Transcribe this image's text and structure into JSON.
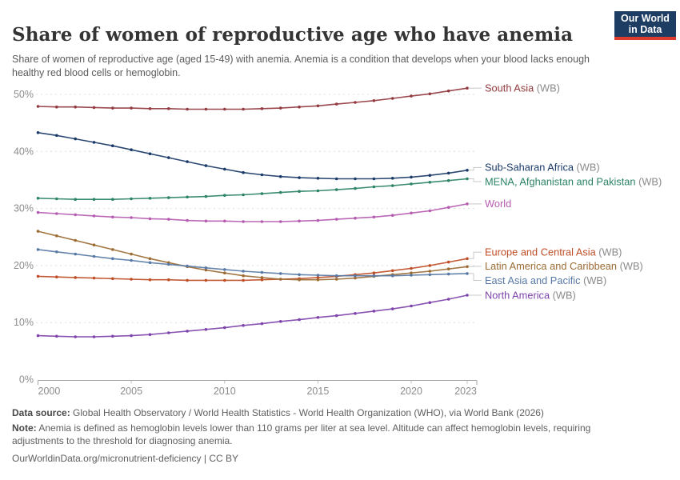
{
  "header": {
    "title": "Share of women of reproductive age who have anemia",
    "subtitle": "Share of women of reproductive age (aged 15-49) with anemia. Anemia is a condition that develops when your blood lacks enough healthy red blood cells or hemoglobin.",
    "logo": {
      "line1": "Our World",
      "line2": "in Data",
      "bg_color": "#1d3d63",
      "accent_color": "#dc3b2e"
    }
  },
  "chart_data": {
    "type": "line",
    "x_label": "",
    "y_label": "",
    "x": [
      2000,
      2001,
      2002,
      2003,
      2004,
      2005,
      2006,
      2007,
      2008,
      2009,
      2010,
      2011,
      2012,
      2013,
      2014,
      2015,
      2016,
      2017,
      2018,
      2019,
      2020,
      2021,
      2022,
      2023
    ],
    "x_ticks": [
      2000,
      2005,
      2010,
      2015,
      2020,
      2023
    ],
    "y_ticks": [
      0,
      10,
      20,
      30,
      40,
      50
    ],
    "y_tick_suffix": "%",
    "ylim": [
      0,
      52
    ],
    "grid": "horizontal-dashed",
    "legend_position": "right-of-lines",
    "marker": "circle-every-year",
    "series": [
      {
        "name": "South Asia",
        "suffix": " (WB)",
        "color": "#923A3F",
        "values": [
          47.9,
          47.8,
          47.8,
          47.7,
          47.6,
          47.6,
          47.5,
          47.5,
          47.4,
          47.4,
          47.4,
          47.4,
          47.5,
          47.6,
          47.8,
          48.0,
          48.3,
          48.6,
          48.9,
          49.3,
          49.7,
          50.1,
          50.6,
          51.1
        ]
      },
      {
        "name": "Sub-Saharan Africa",
        "suffix": " (WB)",
        "color": "#1A3A68",
        "values": [
          43.3,
          42.8,
          42.2,
          41.6,
          41.0,
          40.3,
          39.6,
          38.9,
          38.2,
          37.5,
          36.9,
          36.3,
          35.9,
          35.6,
          35.4,
          35.3,
          35.2,
          35.2,
          35.2,
          35.3,
          35.5,
          35.8,
          36.2,
          36.7
        ]
      },
      {
        "name": "MENA, Afghanistan and Pakistan",
        "suffix": " (WB)",
        "color": "#2C8465",
        "values": [
          31.8,
          31.7,
          31.6,
          31.6,
          31.6,
          31.7,
          31.8,
          31.9,
          32.0,
          32.1,
          32.3,
          32.4,
          32.6,
          32.8,
          33.0,
          33.1,
          33.3,
          33.5,
          33.8,
          34.0,
          34.3,
          34.6,
          34.9,
          35.2
        ]
      },
      {
        "name": "World",
        "suffix": "",
        "color": "#B55CB0",
        "values": [
          29.3,
          29.1,
          28.9,
          28.7,
          28.5,
          28.4,
          28.2,
          28.1,
          27.9,
          27.8,
          27.8,
          27.7,
          27.7,
          27.7,
          27.8,
          27.9,
          28.1,
          28.3,
          28.5,
          28.8,
          29.2,
          29.6,
          30.2,
          30.8
        ]
      },
      {
        "name": "Europe and Central Asia",
        "suffix": " (WB)",
        "color": "#BF4D26",
        "values": [
          18.1,
          18.0,
          17.9,
          17.8,
          17.7,
          17.6,
          17.5,
          17.5,
          17.4,
          17.4,
          17.4,
          17.4,
          17.5,
          17.6,
          17.7,
          17.9,
          18.1,
          18.4,
          18.7,
          19.1,
          19.5,
          20.0,
          20.6,
          21.2
        ]
      },
      {
        "name": "Latin America and Caribbean",
        "suffix": " (WB)",
        "color": "#9B6B33",
        "values": [
          26.0,
          25.2,
          24.4,
          23.6,
          22.8,
          22.0,
          21.2,
          20.5,
          19.8,
          19.2,
          18.7,
          18.2,
          17.9,
          17.6,
          17.5,
          17.5,
          17.6,
          17.8,
          18.1,
          18.4,
          18.7,
          19.0,
          19.4,
          19.8
        ]
      },
      {
        "name": "East Asia and Pacific",
        "suffix": " (WB)",
        "color": "#5879A5",
        "values": [
          22.8,
          22.4,
          22.0,
          21.6,
          21.2,
          20.9,
          20.5,
          20.2,
          19.9,
          19.6,
          19.3,
          19.0,
          18.8,
          18.6,
          18.4,
          18.3,
          18.2,
          18.2,
          18.2,
          18.2,
          18.3,
          18.4,
          18.5,
          18.6
        ]
      },
      {
        "name": "North America",
        "suffix": " (WB)",
        "color": "#7E43AB",
        "values": [
          7.7,
          7.6,
          7.5,
          7.5,
          7.6,
          7.7,
          7.9,
          8.2,
          8.5,
          8.8,
          9.1,
          9.5,
          9.8,
          10.2,
          10.5,
          10.9,
          11.2,
          11.6,
          12.0,
          12.4,
          12.9,
          13.5,
          14.1,
          14.8
        ]
      }
    ],
    "suffix_color": "#8a8a8a"
  },
  "footer": {
    "data_source_label": "Data source:",
    "data_source": " Global Health Observatory / World Health Statistics - World Health Organization (WHO), via World Bank (2026)",
    "note_label": "Note:",
    "note": " Anemia is defined as hemoglobin levels lower than 110 grams per liter at sea level. Altitude can affect hemoglobin levels, requiring adjustments to the threshold for diagnosing anemia.",
    "link": "OurWorldinData.org/micronutrient-deficiency | CC BY"
  }
}
